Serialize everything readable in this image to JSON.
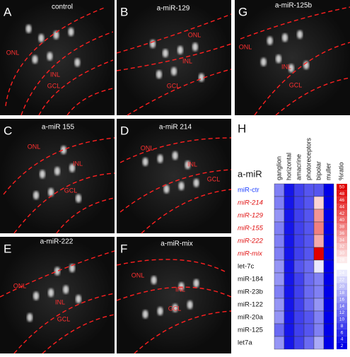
{
  "panels": [
    {
      "letter": "A",
      "title": "control",
      "labels": [
        "ONL",
        "INL",
        "GCL"
      ]
    },
    {
      "letter": "B",
      "title": "a-miR-129",
      "labels": [
        "ONL",
        "INL",
        "GCL"
      ]
    },
    {
      "letter": "G",
      "title": "a-miR-125b",
      "labels": [
        "ONL",
        "INL",
        "GCL"
      ]
    },
    {
      "letter": "C",
      "title": "a-miR 155",
      "labels": [
        "ONL",
        "INL",
        "GCL"
      ]
    },
    {
      "letter": "D",
      "title": "a-miR 214",
      "labels": [
        "ONL",
        "INL",
        "GCL"
      ]
    },
    {
      "letter": "E",
      "title": "a-miR-222",
      "labels": [
        "ONL",
        "INL",
        "GCL"
      ]
    },
    {
      "letter": "F",
      "title": "a-miR-mix",
      "labels": [
        "ONL",
        "INL",
        "GCL"
      ]
    }
  ],
  "heatmap": {
    "letter": "H",
    "row_header": "a-miR",
    "colorbar_title": "%ratio",
    "columns": [
      "ganglion",
      "horizontal",
      "amacrine",
      "photoreceptors",
      "bipolar",
      "muller"
    ],
    "rows": [
      {
        "label": "miR-ctr",
        "color": "#1a3cff",
        "italic": false,
        "values": [
          14,
          4,
          8,
          10,
          10,
          2
        ]
      },
      {
        "label": "miR-214",
        "color": "#e01010",
        "italic": true,
        "values": [
          14,
          4,
          8,
          10,
          30,
          2
        ]
      },
      {
        "label": "miR-129",
        "color": "#e01010",
        "italic": true,
        "values": [
          16,
          4,
          8,
          10,
          36,
          2
        ]
      },
      {
        "label": "miR-155",
        "color": "#e01010",
        "italic": true,
        "values": [
          14,
          4,
          8,
          10,
          38,
          2
        ]
      },
      {
        "label": "miR-222",
        "color": "#e01010",
        "italic": true,
        "values": [
          14,
          4,
          8,
          10,
          34,
          2
        ]
      },
      {
        "label": "miR-mix",
        "color": "#e01010",
        "italic": true,
        "values": [
          14,
          4,
          8,
          10,
          50,
          2
        ]
      },
      {
        "label": "let-7c",
        "color": "#111111",
        "italic": false,
        "values": [
          16,
          4,
          10,
          12,
          24,
          2
        ]
      },
      {
        "label": "miR-184",
        "color": "#111111",
        "italic": false,
        "values": [
          16,
          4,
          8,
          12,
          14,
          2
        ]
      },
      {
        "label": "miR-23b",
        "color": "#111111",
        "italic": false,
        "values": [
          14,
          4,
          8,
          12,
          14,
          2
        ]
      },
      {
        "label": "miR-122",
        "color": "#111111",
        "italic": false,
        "values": [
          16,
          4,
          8,
          12,
          16,
          2
        ]
      },
      {
        "label": "miR-20a",
        "color": "#111111",
        "italic": false,
        "values": [
          16,
          4,
          8,
          10,
          14,
          2
        ]
      },
      {
        "label": "miR-125",
        "color": "#111111",
        "italic": false,
        "values": [
          12,
          4,
          8,
          10,
          14,
          2
        ]
      },
      {
        "label": "let7a",
        "color": "#111111",
        "italic": false,
        "values": [
          16,
          4,
          8,
          12,
          18,
          2
        ]
      }
    ],
    "colormap": [
      "#0000e8",
      "#ffffff",
      "#e00000"
    ],
    "vlim": [
      2,
      50
    ],
    "colorbar_ticks": [
      50,
      48,
      46,
      44,
      42,
      40,
      38,
      36,
      34,
      32,
      30,
      28,
      26,
      24,
      22,
      20,
      18,
      16,
      14,
      12,
      10,
      8,
      6,
      4,
      2
    ]
  }
}
